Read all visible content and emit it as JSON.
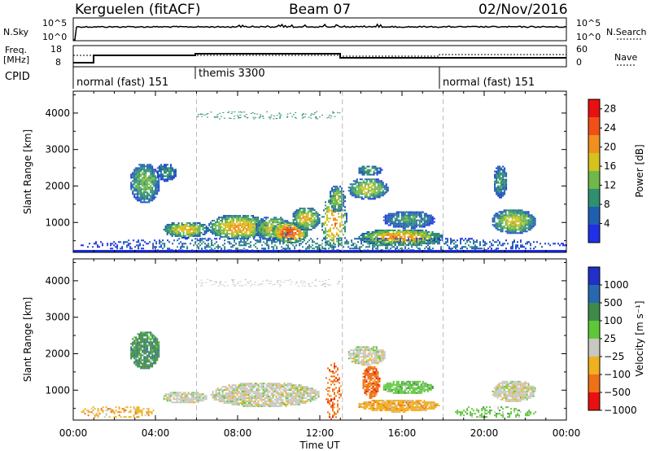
{
  "header": {
    "station": "Kerguelen (fitACF)",
    "beam": "Beam 07",
    "date": "02/Nov/2016"
  },
  "top_panels": {
    "nsky_label": "N.Sky",
    "nsky_ticks": [
      "10^5",
      "10^0"
    ],
    "nsearch_label": "N.Search",
    "nsearch_ticks": [
      "10^5",
      "10^0"
    ],
    "freq_label": "Freq.",
    "freq_unit": "[MHz]",
    "freq_ticks": [
      "18",
      "8"
    ],
    "nave_label": "Nave",
    "nave_ticks": [
      "60",
      "0"
    ],
    "cpid_label": "CPID",
    "modes": [
      {
        "name": "normal (fast) 151",
        "start_h": 0,
        "end_h": 6
      },
      {
        "name": "themis 3300",
        "start_h": 6,
        "end_h": 18
      },
      {
        "name": "normal (fast) 151",
        "start_h": 18,
        "end_h": 24
      }
    ]
  },
  "chart_data": [
    {
      "type": "heatmap",
      "name": "power",
      "ylabel": "Slant Range [km]",
      "yticks": [
        "1000",
        "2000",
        "3000",
        "4000"
      ],
      "ylim": [
        180,
        4600
      ],
      "xlim_hours": [
        0,
        24
      ],
      "colorbar_label": "Power [dB]",
      "colorbar_ticks": [
        "4",
        "8",
        "12",
        "16",
        "20",
        "24",
        "28"
      ],
      "colorbar_range": [
        0,
        30
      ],
      "colors": [
        "#1f30e6",
        "#1f5fb0",
        "#2f8f6f",
        "#6fb84a",
        "#d6c21f",
        "#f09020",
        "#f05018",
        "#e81010"
      ],
      "regions": [
        {
          "t0": 2.7,
          "t1": 4.2,
          "r0": 1550,
          "r1": 2650,
          "level": 0.45
        },
        {
          "t0": 4.0,
          "t1": 5.0,
          "r0": 2150,
          "r1": 2650,
          "level": 0.35
        },
        {
          "t0": 4.3,
          "t1": 6.6,
          "r0": 600,
          "r1": 1050,
          "level": 0.6
        },
        {
          "t0": 6.5,
          "t1": 9.5,
          "r0": 550,
          "r1": 1250,
          "level": 0.65
        },
        {
          "t0": 8.8,
          "t1": 10.6,
          "r0": 500,
          "r1": 1200,
          "level": 0.55
        },
        {
          "t0": 9.6,
          "t1": 11.4,
          "r0": 450,
          "r1": 1050,
          "level": 0.85
        },
        {
          "t0": 10.6,
          "t1": 12.0,
          "r0": 800,
          "r1": 1450,
          "level": 0.6
        },
        {
          "t0": 12.0,
          "t1": 13.3,
          "r0": 250,
          "r1": 1800,
          "level": 0.7
        },
        {
          "t0": 12.4,
          "t1": 13.2,
          "r0": 1300,
          "r1": 2050,
          "level": 0.5
        },
        {
          "t0": 13.3,
          "t1": 15.3,
          "r0": 1650,
          "r1": 2250,
          "level": 0.55
        },
        {
          "t0": 13.8,
          "t1": 15.0,
          "r0": 2300,
          "r1": 2600,
          "level": 0.4
        },
        {
          "t0": 13.8,
          "t1": 18.0,
          "r0": 380,
          "r1": 850,
          "level": 0.7
        },
        {
          "t0": 15.0,
          "t1": 17.6,
          "r0": 850,
          "r1": 1350,
          "level": 0.35
        },
        {
          "t0": 20.3,
          "t1": 22.5,
          "r0": 700,
          "r1": 1400,
          "level": 0.55
        },
        {
          "t0": 20.4,
          "t1": 21.1,
          "r0": 1700,
          "r1": 2600,
          "level": 0.35
        },
        {
          "t0": 0.2,
          "t1": 24.0,
          "r0": 200,
          "r1": 620,
          "level": 0.3
        }
      ]
    },
    {
      "type": "heatmap",
      "name": "velocity",
      "ylabel": "Slant Range [km]",
      "yticks": [
        "1000",
        "2000",
        "3000",
        "4000"
      ],
      "ylim": [
        180,
        4600
      ],
      "xlim_hours": [
        0,
        24
      ],
      "colorbar_label": "Velocity [m s⁻¹]",
      "colorbar_ticks": [
        "1000",
        "500",
        "100",
        "25",
        "−25",
        "−100",
        "−500",
        "−1000"
      ],
      "colors": [
        "#2030c8",
        "#2868b0",
        "#3f8a48",
        "#5cc838",
        "#c8c8c0",
        "#f0b020",
        "#f07018",
        "#e81010"
      ],
      "regions": [
        {
          "t0": 2.7,
          "t1": 4.2,
          "r0": 1600,
          "r1": 2650,
          "cls": 2
        },
        {
          "t0": 4.3,
          "t1": 6.5,
          "r0": 650,
          "r1": 1000,
          "cls": 4
        },
        {
          "t0": 6.6,
          "t1": 12.0,
          "r0": 550,
          "r1": 1250,
          "cls": 4
        },
        {
          "t0": 12.2,
          "t1": 13.0,
          "r0": 200,
          "r1": 1800,
          "cls": 6
        },
        {
          "t0": 13.3,
          "t1": 15.2,
          "r0": 1700,
          "r1": 2250,
          "cls": 4
        },
        {
          "t0": 13.8,
          "t1": 17.8,
          "r0": 420,
          "r1": 780,
          "cls": 5
        },
        {
          "t0": 14.0,
          "t1": 14.9,
          "r0": 800,
          "r1": 1700,
          "cls": 6
        },
        {
          "t0": 15.0,
          "t1": 17.5,
          "r0": 900,
          "r1": 1300,
          "cls": 3
        },
        {
          "t0": 18.5,
          "t1": 22.5,
          "r0": 250,
          "r1": 600,
          "cls": 3
        },
        {
          "t0": 20.3,
          "t1": 22.5,
          "r0": 700,
          "r1": 1300,
          "cls": 4
        },
        {
          "t0": 0.3,
          "t1": 4.0,
          "r0": 250,
          "r1": 600,
          "cls": 5
        }
      ]
    }
  ],
  "x_axis": {
    "label": "Time UT",
    "ticks": [
      "00:00",
      "04:00",
      "08:00",
      "12:00",
      "16:00",
      "20:00",
      "00:00"
    ]
  }
}
